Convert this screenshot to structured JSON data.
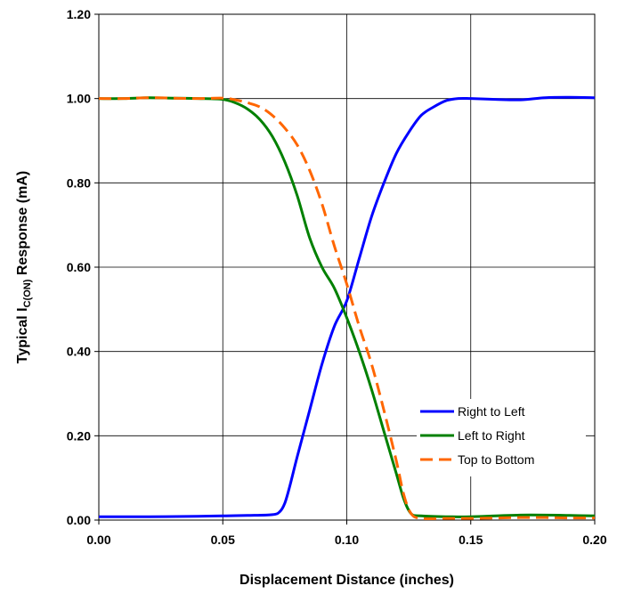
{
  "chart_data": {
    "type": "line",
    "xlabel": "Displacement Distance (inches)",
    "ylabel": {
      "prefix": "Typical I",
      "subscript": "C(ON)",
      "suffix": " Response (mA)"
    },
    "xlim": [
      0,
      0.2
    ],
    "ylim": [
      0,
      1.2
    ],
    "x_ticks": [
      "0.00",
      "0.05",
      "0.10",
      "0.15",
      "0.20"
    ],
    "y_ticks": [
      "0.00",
      "0.20",
      "0.40",
      "0.60",
      "0.80",
      "1.00",
      "1.20"
    ],
    "grid": true,
    "legend_position": "bottom-right",
    "series": [
      {
        "name": "Right to Left",
        "color": "#0000ff",
        "dash": "solid",
        "x": [
          0,
          0.02,
          0.04,
          0.05,
          0.06,
          0.07,
          0.073,
          0.075,
          0.077,
          0.08,
          0.085,
          0.09,
          0.095,
          0.1,
          0.105,
          0.11,
          0.115,
          0.12,
          0.125,
          0.13,
          0.135,
          0.14,
          0.145,
          0.15,
          0.16,
          0.17,
          0.18,
          0.19,
          0.2
        ],
        "values": [
          0.008,
          0.008,
          0.009,
          0.01,
          0.011,
          0.013,
          0.02,
          0.04,
          0.08,
          0.15,
          0.26,
          0.37,
          0.46,
          0.52,
          0.62,
          0.72,
          0.8,
          0.87,
          0.92,
          0.96,
          0.98,
          0.995,
          1.0,
          1.0,
          0.998,
          0.997,
          1.002,
          1.003,
          1.002
        ]
      },
      {
        "name": "Left to Right",
        "color": "#008000",
        "dash": "solid",
        "x": [
          0,
          0.01,
          0.02,
          0.03,
          0.04,
          0.05,
          0.055,
          0.06,
          0.065,
          0.07,
          0.075,
          0.08,
          0.085,
          0.09,
          0.095,
          0.1,
          0.105,
          0.11,
          0.115,
          0.12,
          0.123,
          0.126,
          0.13,
          0.14,
          0.15,
          0.16,
          0.17,
          0.18,
          0.19,
          0.2
        ],
        "values": [
          1.0,
          1.0,
          1.002,
          1.001,
          1.0,
          0.998,
          0.99,
          0.975,
          0.95,
          0.91,
          0.85,
          0.77,
          0.67,
          0.6,
          0.55,
          0.48,
          0.4,
          0.31,
          0.21,
          0.11,
          0.05,
          0.015,
          0.01,
          0.008,
          0.008,
          0.01,
          0.012,
          0.012,
          0.011,
          0.01
        ]
      },
      {
        "name": "Top to Bottom",
        "color": "#ff6600",
        "dash": "dashed",
        "x": [
          0,
          0.01,
          0.02,
          0.03,
          0.04,
          0.05,
          0.055,
          0.06,
          0.065,
          0.07,
          0.075,
          0.08,
          0.085,
          0.09,
          0.095,
          0.1,
          0.105,
          0.11,
          0.115,
          0.12,
          0.123,
          0.126,
          0.13,
          0.14,
          0.15,
          0.16,
          0.17,
          0.18,
          0.19,
          0.2
        ],
        "values": [
          1.0,
          1.0,
          1.002,
          1.001,
          1.0,
          1.001,
          0.997,
          0.99,
          0.98,
          0.96,
          0.93,
          0.89,
          0.83,
          0.75,
          0.65,
          0.56,
          0.46,
          0.37,
          0.26,
          0.14,
          0.06,
          0.015,
          0.004,
          0.004,
          0.004,
          0.005,
          0.006,
          0.006,
          0.005,
          0.005
        ]
      }
    ]
  }
}
